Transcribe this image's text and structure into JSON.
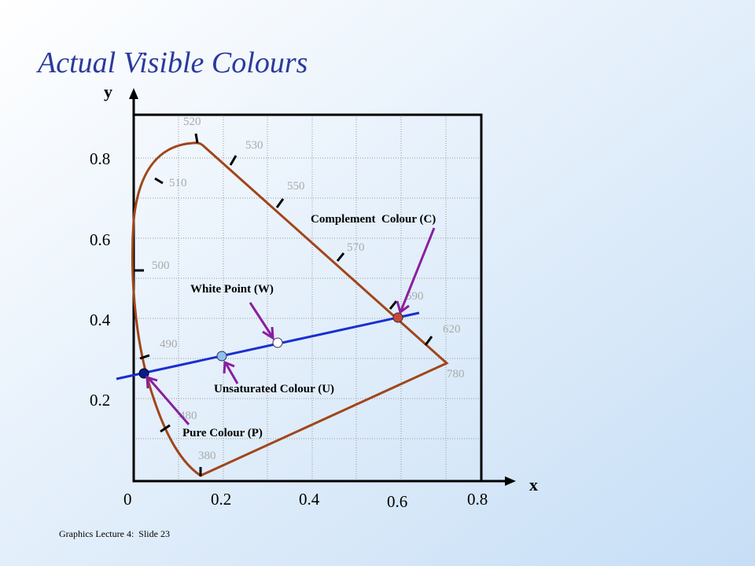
{
  "title": "Actual Visible Colours",
  "axes": {
    "x_label": "x",
    "y_label": "y",
    "x_ticks": [
      "0",
      "0.2",
      "0.4",
      "0.6",
      "0.8"
    ],
    "y_ticks": [
      "0.8",
      "0.6",
      "0.4",
      "0.2"
    ]
  },
  "wavelengths": [
    "380",
    "480",
    "490",
    "500",
    "510",
    "520",
    "530",
    "550",
    "570",
    "590",
    "620",
    "780"
  ],
  "annotations": [
    "Complement  Colour (C)",
    "White Point (W)",
    "Unsaturated Colour (U)",
    "Pure Colour (P)"
  ],
  "footer": "Graphics Lecture 4:  Slide 23"
}
